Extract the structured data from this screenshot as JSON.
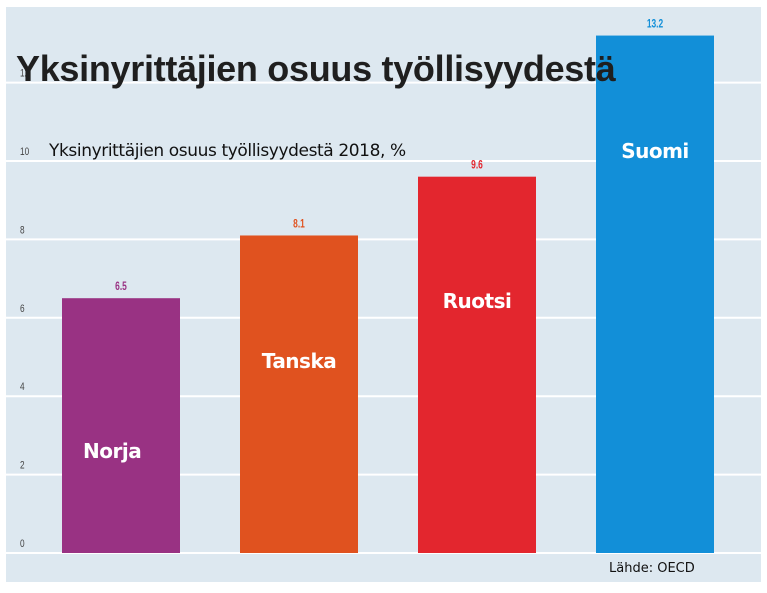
{
  "chart_data": {
    "type": "bar",
    "title": "Yksinyrittäjien osuus työllisyydestä",
    "subtitle": "Yksinyrittäjien osuus työllisyydestä 2018, %",
    "categories": [
      "Norja",
      "Tanska",
      "Ruotsi",
      "Suomi"
    ],
    "values": [
      6.5,
      8.1,
      9.6,
      13.2
    ],
    "value_labels": [
      "6.5",
      "8.1",
      "9.6",
      "13.2"
    ],
    "colors": [
      "#993283",
      "#e0521f",
      "#e3262e",
      "#128fd8"
    ],
    "yticks": [
      0,
      2,
      4,
      6,
      8,
      10,
      12
    ],
    "ylim": [
      0,
      13.5
    ],
    "xlabel": "",
    "ylabel": "",
    "grid": true,
    "legend": "none",
    "source": "Lähde: OECD"
  }
}
